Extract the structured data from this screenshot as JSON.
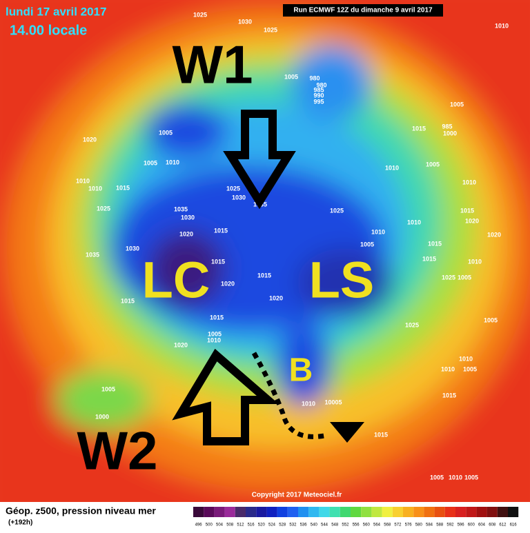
{
  "header": {
    "date": "lundi 17 avril 2017",
    "time": "14.00 locale",
    "run": "Run ECMWF 12Z du dimanche 9 avril 2017"
  },
  "annotations": {
    "w1": "W1",
    "w2": "W2",
    "lc": "LC",
    "ls": "LS",
    "b": "B"
  },
  "copyright": "Copyright 2017 Meteociel.fr",
  "footer": {
    "title": "Géop. z500, pression niveau mer",
    "lead": "(+192h)"
  },
  "isobar_labels": [
    "1025",
    "1030",
    "1025",
    "1010",
    "1005",
    "980",
    "980",
    "985",
    "990",
    "995",
    "1005",
    "1015",
    "985",
    "1000",
    "1020",
    "1005",
    "1005",
    "1010",
    "1010",
    "1005",
    "1010",
    "1010",
    "1010",
    "1015",
    "1025",
    "1030",
    "1035",
    "1025",
    "1035",
    "1030",
    "1025",
    "1015",
    "1020",
    "1010",
    "1015",
    "1020",
    "1010",
    "1020",
    "1030",
    "1005",
    "1015",
    "1035",
    "1015",
    "1015",
    "1020",
    "1020",
    "1015",
    "1010",
    "1025",
    "1005",
    "1015",
    "1015",
    "1005",
    "1010",
    "1025",
    "1020",
    "1005",
    "1005",
    "1000",
    "1010",
    "10005",
    "1015",
    "1005",
    "1010",
    "1005",
    "1010",
    "1005",
    "1010",
    "1015"
  ],
  "colorbar": {
    "labels": [
      496,
      500,
      504,
      508,
      512,
      516,
      520,
      524,
      528,
      532,
      536,
      540,
      544,
      548,
      552,
      556,
      560,
      564,
      568,
      572,
      576,
      580,
      584,
      588,
      592,
      596,
      600,
      604,
      608,
      612,
      616
    ],
    "colors": [
      "#3a0a3a",
      "#5a0a5a",
      "#7a1a7a",
      "#9a2a9a",
      "#4a2a6a",
      "#2a2a8a",
      "#1a1aa0",
      "#1020c0",
      "#1040e0",
      "#2060f0",
      "#2090f0",
      "#30b8f0",
      "#40d8e8",
      "#40e0b0",
      "#40d870",
      "#60d840",
      "#90e040",
      "#c0e840",
      "#f0f040",
      "#f8d030",
      "#f8b020",
      "#f89018",
      "#f07010",
      "#e85010",
      "#e83018",
      "#d82020",
      "#c01818",
      "#a01010",
      "#801010",
      "#401010",
      "#101010"
    ]
  }
}
